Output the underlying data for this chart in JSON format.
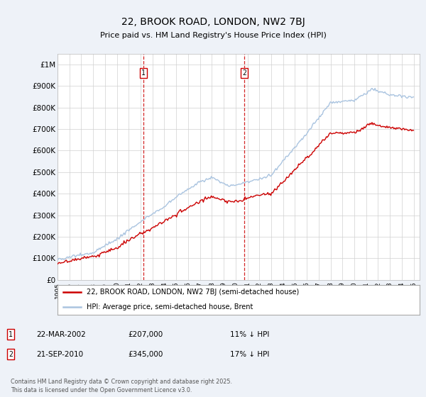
{
  "title": "22, BROOK ROAD, LONDON, NW2 7BJ",
  "subtitle": "Price paid vs. HM Land Registry's House Price Index (HPI)",
  "y_ticks": [
    0,
    100000,
    200000,
    300000,
    400000,
    500000,
    600000,
    700000,
    800000,
    900000,
    1000000
  ],
  "y_tick_labels": [
    "£0",
    "£100K",
    "£200K",
    "£300K",
    "£400K",
    "£500K",
    "£600K",
    "£700K",
    "£800K",
    "£900K",
    "£1M"
  ],
  "x_start_year": 1995,
  "x_end_year": 2025,
  "hpi_color": "#aac4e0",
  "price_color": "#cc0000",
  "vline_color": "#cc0000",
  "marker1_year": 2002.22,
  "marker2_year": 2010.72,
  "legend_label1": "22, BROOK ROAD, LONDON, NW2 7BJ (semi-detached house)",
  "legend_label2": "HPI: Average price, semi-detached house, Brent",
  "annotation1_date": "22-MAR-2002",
  "annotation1_price": "£207,000",
  "annotation1_hpi": "11% ↓ HPI",
  "annotation2_date": "21-SEP-2010",
  "annotation2_price": "£345,000",
  "annotation2_hpi": "17% ↓ HPI",
  "footer": "Contains HM Land Registry data © Crown copyright and database right 2025.\nThis data is licensed under the Open Government Licence v3.0.",
  "background_color": "#eef2f8",
  "plot_bg_color": "#ffffff"
}
